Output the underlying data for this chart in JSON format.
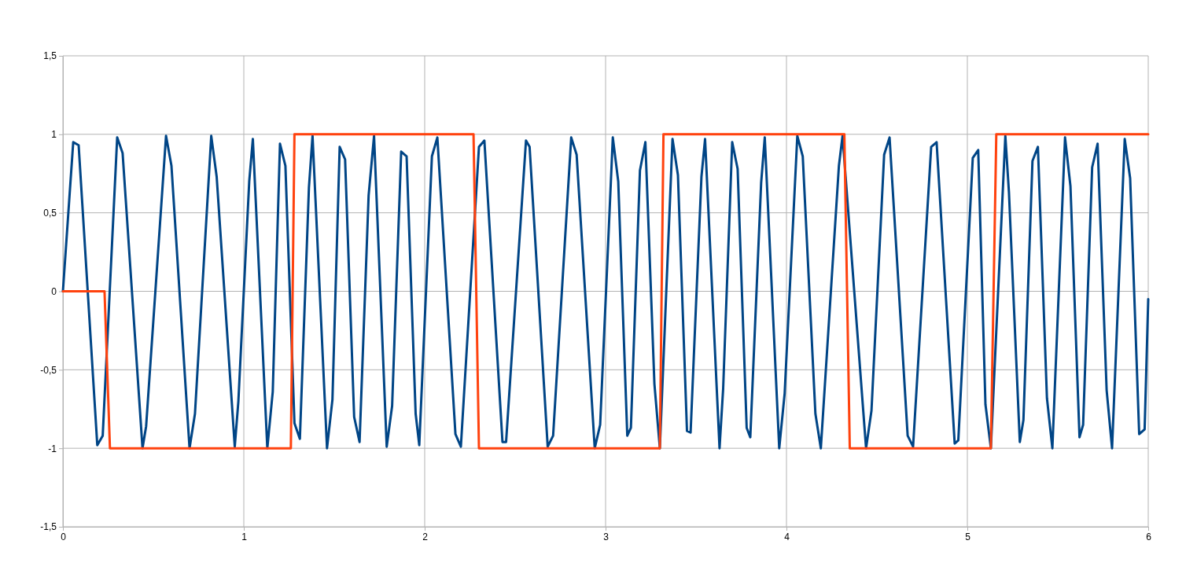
{
  "chart_data": {
    "type": "line",
    "xlim": [
      0,
      6
    ],
    "xticks": [
      0,
      1,
      2,
      3,
      4,
      5,
      6
    ],
    "ylim": [
      -1.5,
      1.5
    ],
    "yticks": [
      {
        "value": -1.5,
        "label": "-1,5"
      },
      -1,
      {
        "value": -0.5,
        "label": "-0,5"
      },
      0,
      {
        "value": 0.5,
        "label": "0,5"
      },
      1,
      {
        "value": 1.5,
        "label": "1,5"
      }
    ],
    "grid": true,
    "marker": "none",
    "line_style": "solid",
    "series": [
      {
        "color": "#004586",
        "x": [
          0,
          0.057,
          0.087,
          0.19,
          0.22,
          0.3,
          0.33,
          0.44,
          0.46,
          0.57,
          0.6,
          0.7,
          0.73,
          0.82,
          0.85,
          0.95,
          0.97,
          1.03,
          1.05,
          1.13,
          1.16,
          1.2,
          1.23,
          1.28,
          1.31,
          1.36,
          1.38,
          1.46,
          1.49,
          1.53,
          1.56,
          1.61,
          1.64,
          1.69,
          1.72,
          1.79,
          1.82,
          1.87,
          1.9,
          1.95,
          1.97,
          2.04,
          2.07,
          2.17,
          2.2,
          2.3,
          2.33,
          2.43,
          2.45,
          2.56,
          2.58,
          2.68,
          2.71,
          2.81,
          2.84,
          2.94,
          2.97,
          3.04,
          3.07,
          3.12,
          3.14,
          3.19,
          3.22,
          3.27,
          3.3,
          3.37,
          3.4,
          3.45,
          3.47,
          3.53,
          3.55,
          3.63,
          3.65,
          3.7,
          3.73,
          3.78,
          3.8,
          3.86,
          3.88,
          3.96,
          3.99,
          4.06,
          4.09,
          4.16,
          4.19,
          4.29,
          4.31,
          4.44,
          4.47,
          4.54,
          4.57,
          4.67,
          4.7,
          4.8,
          4.83,
          4.93,
          4.95,
          5.03,
          5.06,
          5.1,
          5.13,
          5.21,
          5.23,
          5.29,
          5.31,
          5.36,
          5.39,
          5.44,
          5.47,
          5.54,
          5.57,
          5.62,
          5.64,
          5.69,
          5.72,
          5.77,
          5.8,
          5.87,
          5.9,
          5.95,
          5.98,
          6
        ],
        "values": [
          0,
          0.95,
          0.93,
          -0.98,
          -0.92,
          0.98,
          0.88,
          -1,
          -0.86,
          0.99,
          0.8,
          -1,
          -0.78,
          0.99,
          0.73,
          -0.99,
          -0.7,
          0.7,
          0.97,
          -1,
          -0.64,
          0.94,
          0.8,
          -0.84,
          -0.94,
          0.66,
          0.99,
          -1,
          -0.69,
          0.92,
          0.84,
          -0.8,
          -0.96,
          0.61,
          0.99,
          -0.99,
          -0.73,
          0.89,
          0.86,
          -0.78,
          -0.98,
          0.86,
          0.98,
          -0.91,
          -0.99,
          0.92,
          0.96,
          -0.96,
          -0.96,
          0.96,
          0.92,
          -0.99,
          -0.92,
          0.98,
          0.87,
          -1,
          -0.85,
          0.98,
          0.7,
          -0.92,
          -0.87,
          0.77,
          0.95,
          -0.59,
          -1,
          0.97,
          0.74,
          -0.89,
          -0.9,
          0.73,
          0.97,
          -1,
          -0.62,
          0.95,
          0.78,
          -0.87,
          -0.93,
          0.69,
          0.98,
          -1,
          -0.65,
          0.99,
          0.86,
          -0.78,
          -1,
          0.8,
          0.99,
          -1,
          -0.76,
          0.87,
          0.98,
          -0.92,
          -0.99,
          0.92,
          0.95,
          -0.97,
          -0.95,
          0.85,
          0.9,
          -0.72,
          -1,
          0.99,
          0.63,
          -0.96,
          -0.82,
          0.83,
          0.92,
          -0.68,
          -1,
          0.98,
          0.67,
          -0.93,
          -0.85,
          0.79,
          0.94,
          -0.63,
          -1,
          0.97,
          0.72,
          -0.91,
          -0.88,
          -0.05
        ]
      },
      {
        "color": "#ff420e",
        "x": [
          0,
          0.23,
          0.26,
          1.26,
          1.28,
          2.27,
          2.3,
          3.3,
          3.32,
          4.32,
          4.35,
          5.13,
          5.16,
          6
        ],
        "values": [
          0,
          0,
          -1,
          -1,
          1,
          1,
          -1,
          -1,
          1,
          1,
          -1,
          -1,
          1,
          1
        ]
      }
    ]
  }
}
